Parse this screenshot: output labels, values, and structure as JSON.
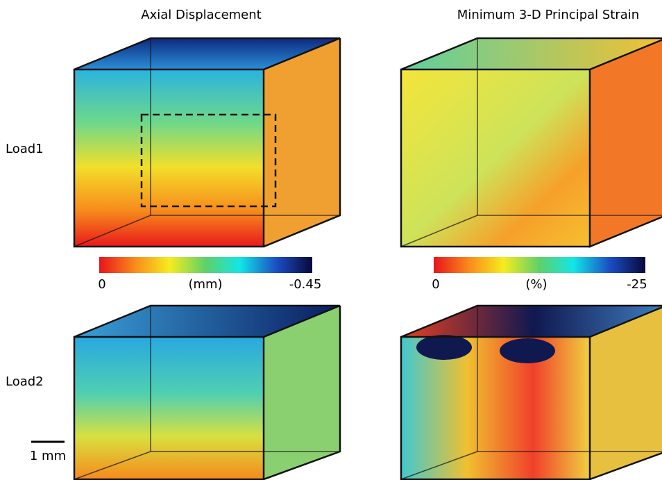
{
  "columns": [
    {
      "title": "Axial Displacement",
      "colorbar": {
        "min": "0",
        "unit": "(mm)",
        "max": "-0.45"
      }
    },
    {
      "title": "Minimum 3-D Principal Strain",
      "colorbar": {
        "min": "0",
        "unit": "(%)",
        "max": "-25"
      }
    }
  ],
  "rows": [
    {
      "label": "Load1"
    },
    {
      "label": "Load2"
    }
  ],
  "scale_bar": {
    "label": "1 mm"
  }
}
